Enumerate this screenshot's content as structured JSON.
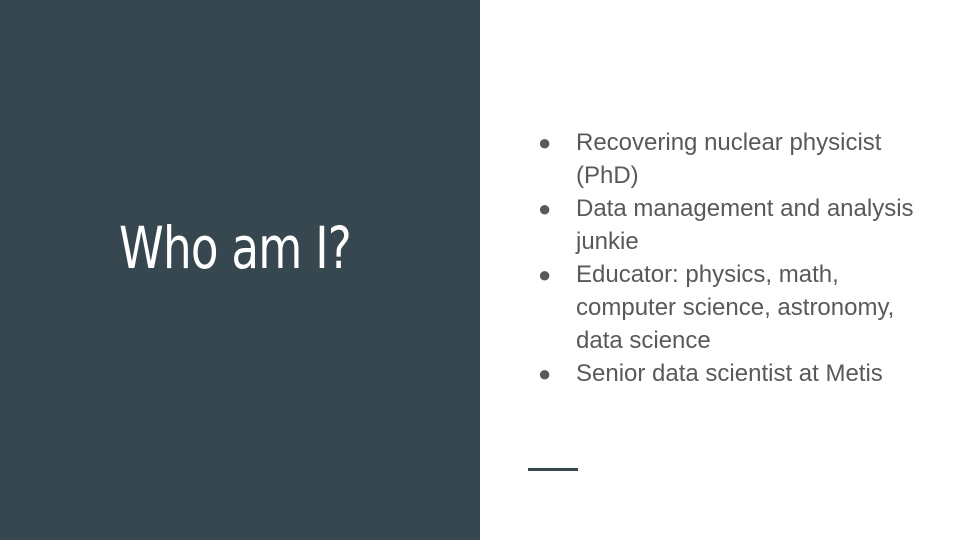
{
  "slide": {
    "title": "Who am I?",
    "bullets": [
      "Recovering nuclear physicist (PhD)",
      "Data management and analysis junkie",
      "Educator: physics, math, computer science, astronomy, data science",
      "Senior data scientist at Metis"
    ],
    "bullet_glyph": "●"
  },
  "colors": {
    "left_panel": "#37474f",
    "title_text": "#ffffff",
    "body_text": "#595959",
    "accent_line": "#37474f"
  }
}
